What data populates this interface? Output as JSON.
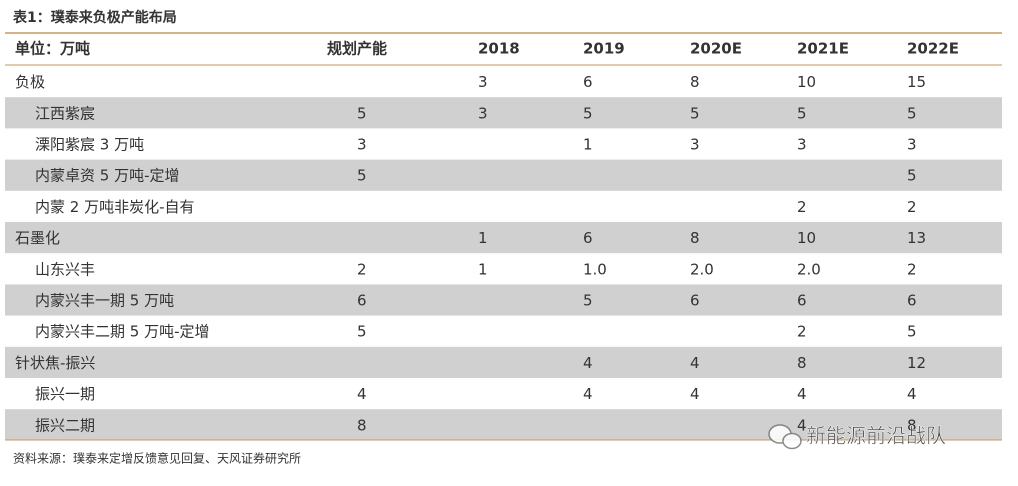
{
  "title": "表1：璞泰来负极产能布局",
  "table": {
    "header": [
      "单位：万吨",
      "规划产能",
      "2018",
      "2019",
      "2020E",
      "2021E",
      "2022E"
    ],
    "groups": [
      {
        "cells": [
          "负极",
          null,
          "3",
          "6",
          "8",
          "10",
          "15"
        ],
        "items": [
          [
            "江西紫宸",
            "5",
            "3",
            "5",
            "5",
            "5",
            "5"
          ],
          [
            "溧阳紫宸 3 万吨",
            "3",
            null,
            "1",
            "3",
            "3",
            "3"
          ],
          [
            "内蒙卓资 5 万吨-定增",
            "5",
            null,
            null,
            null,
            null,
            "5"
          ],
          [
            "内蒙 2 万吨非炭化-自有",
            null,
            null,
            null,
            null,
            "2",
            "2"
          ]
        ]
      },
      {
        "cells": [
          "石墨化",
          null,
          "1",
          "6",
          "8",
          "10",
          "13"
        ],
        "items": [
          [
            "山东兴丰",
            "2",
            "1",
            "1.0",
            "2.0",
            "2.0",
            "2"
          ],
          [
            "内蒙兴丰一期 5 万吨",
            "6",
            null,
            "5",
            "6",
            "6",
            "6"
          ],
          [
            "内蒙兴丰二期 5 万吨-定增",
            "5",
            null,
            null,
            null,
            "2",
            "5"
          ]
        ]
      },
      {
        "cells": [
          "针状焦-振兴",
          null,
          null,
          "4",
          "4",
          "8",
          "12"
        ],
        "items": [
          [
            "振兴一期",
            "4",
            null,
            "4",
            "4",
            "4",
            "4"
          ],
          [
            "振兴二期",
            "8",
            null,
            null,
            null,
            "4",
            "8"
          ]
        ]
      }
    ]
  },
  "source": "资料来源：璞泰来定增反馈意见回复、天风证券研究所",
  "watermark": "新能源前沿战队"
}
